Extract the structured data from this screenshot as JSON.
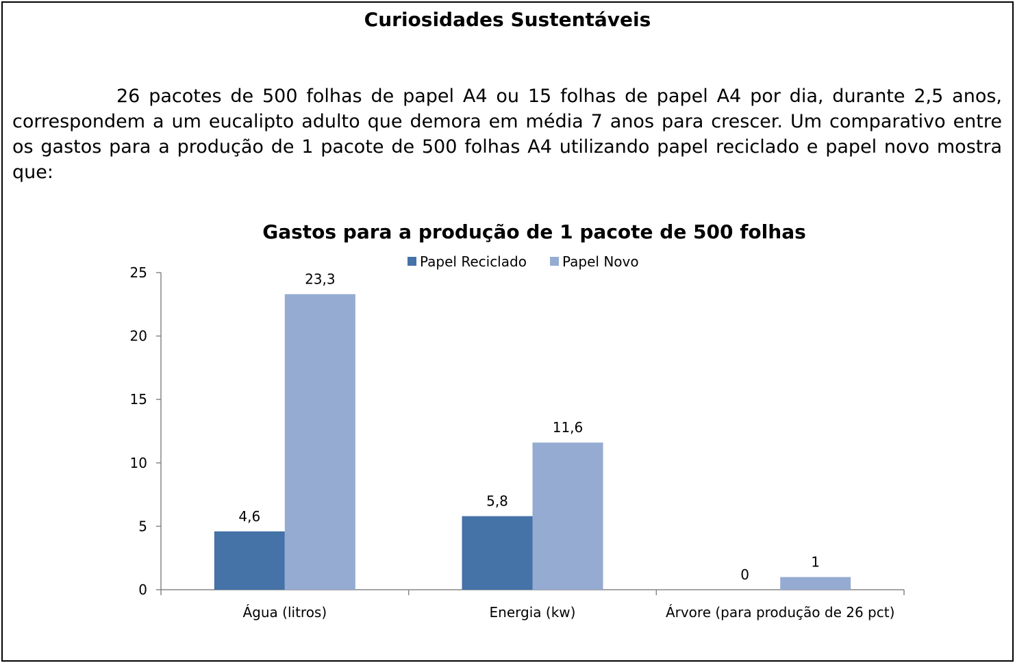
{
  "page": {
    "heading": "Curiosidades Sustentáveis",
    "intro": "26 pacotes de 500 folhas de papel A4 ou 15 folhas de papel A4 por dia, durante 2,5 anos, correspondem a um eucalipto adulto que demora em média 7 anos para crescer. Um comparativo entre os gastos para a produção de 1 pacote de 500 folhas A4 utilizando papel reciclado e  papel novo mostra que:"
  },
  "chart_data": {
    "type": "bar",
    "title": "Gastos para a produção de 1 pacote de 500 folhas",
    "categories": [
      "Água (litros)",
      "Energia (kw)",
      "Árvore (para produção de 26 pct)"
    ],
    "series": [
      {
        "name": "Papel Reciclado",
        "values": [
          4.6,
          5.8,
          0
        ],
        "labels": [
          "4,6",
          "5,8",
          "0"
        ],
        "color": "#4572A7"
      },
      {
        "name": "Papel Novo",
        "values": [
          23.3,
          11.6,
          1
        ],
        "labels": [
          "23,3",
          "11,6",
          "1"
        ],
        "color": "#95ABD2"
      }
    ],
    "ylim": [
      0,
      25
    ],
    "yticks": [
      0,
      5,
      10,
      15,
      20,
      25
    ],
    "legend": "top",
    "grid": false,
    "xlabel": "",
    "ylabel": ""
  }
}
